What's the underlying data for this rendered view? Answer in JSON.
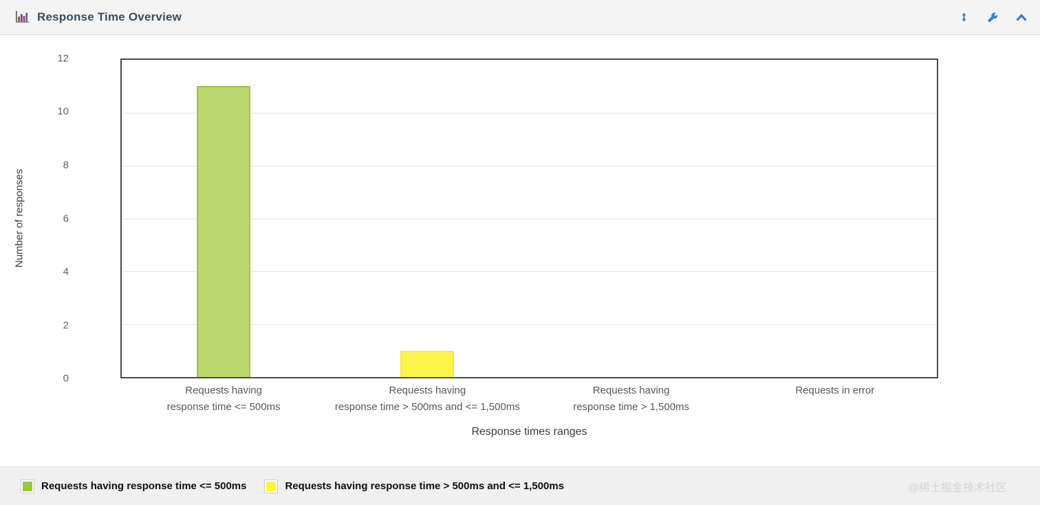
{
  "panel": {
    "title": "Response Time Overview",
    "icons": [
      "bar-chart-icon",
      "vertical-resize-icon",
      "wrench-icon",
      "chevron-up-icon"
    ]
  },
  "chart_data": {
    "type": "bar",
    "title": "Response Time Overview",
    "xlabel": "Response times ranges",
    "ylabel": "Number of responses",
    "ylim": [
      0,
      12
    ],
    "yticks": [
      0,
      2,
      4,
      6,
      8,
      10,
      12
    ],
    "grid": true,
    "legend_position": "bottom",
    "categories": [
      [
        "Requests having",
        "response time <= 500ms"
      ],
      [
        "Requests having",
        "response time > 500ms and <= 1,500ms"
      ],
      [
        "Requests having",
        "response time > 1,500ms"
      ],
      [
        "Requests in error"
      ]
    ],
    "values": [
      11,
      1,
      0,
      0
    ],
    "bar_colors": [
      {
        "fill": "#bcd76e",
        "stroke": "#a3c24a"
      },
      {
        "fill": "#fcf44d",
        "stroke": "#f3ea3d"
      },
      {
        "fill": "none",
        "stroke": "none"
      },
      {
        "fill": "none",
        "stroke": "none"
      }
    ]
  },
  "legend": {
    "items": [
      {
        "label": "Requests having response time <= 500ms",
        "color": "#9ac73c"
      },
      {
        "label": "Requests having response time > 500ms and <= 1,500ms",
        "color": "#fcf63e"
      }
    ]
  },
  "watermark": "@稀土掘金技术社区",
  "colors": {
    "icon_accent": "#4a7fb5",
    "title_text": "#3a4e5e",
    "plot_border": "#4a4a4a",
    "gridline": "#e5e5e5",
    "header_bg": "#f4f4f4",
    "legend_bg": "#f0f0f0"
  }
}
